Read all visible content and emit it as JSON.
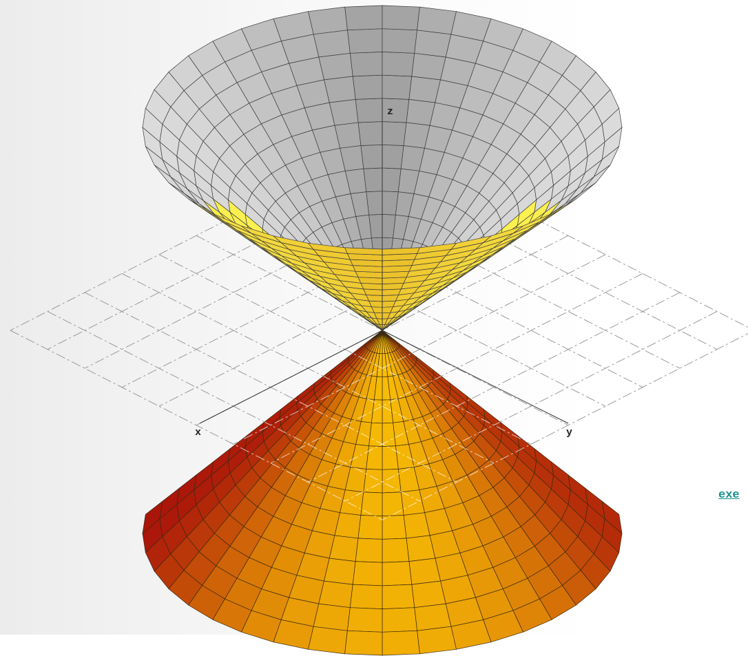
{
  "figure": {
    "axis_labels": {
      "z": "z",
      "x": "x",
      "y": "y"
    }
  },
  "link": {
    "text": "exe"
  }
}
